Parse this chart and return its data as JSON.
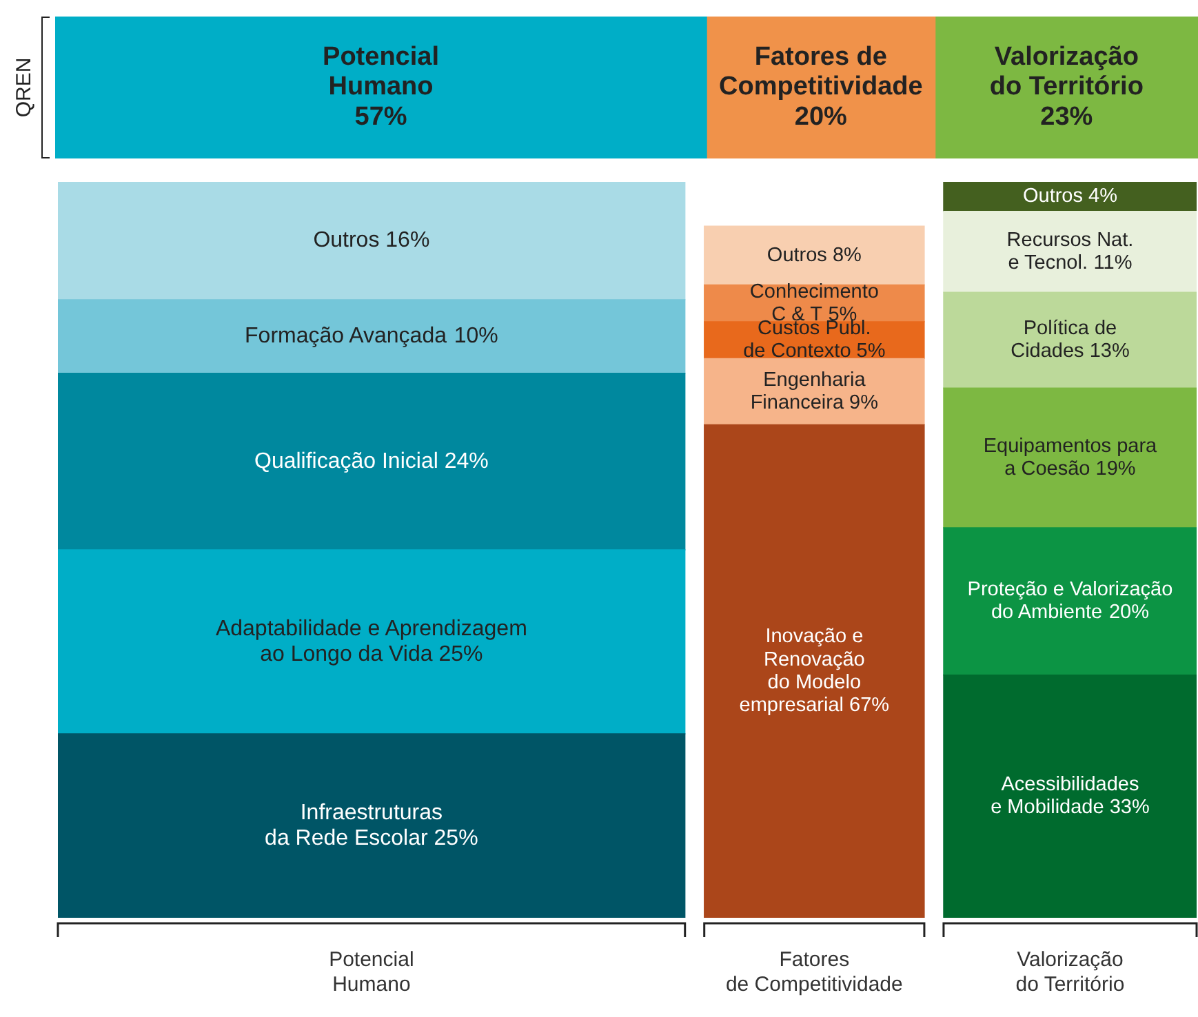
{
  "chart_data": [
    {
      "type": "bar",
      "orientation": "horizontal",
      "stacked": true,
      "categories": [
        "QREN"
      ],
      "legend": false,
      "series": [
        {
          "name": "Potencial\nHumano",
          "color": "#00aec7",
          "values": [
            57
          ],
          "value_labels": [
            "57%"
          ]
        },
        {
          "name": "Fatores de\nCompetitividade",
          "color": "#f0924a",
          "values": [
            20
          ],
          "value_labels": [
            "20%"
          ]
        },
        {
          "name": "Valorização\ndo Território",
          "color": "#7db842",
          "values": [
            23
          ],
          "value_labels": [
            "23%"
          ]
        }
      ]
    },
    {
      "type": "bar",
      "stacked": true,
      "categories": [
        "Potencial\nHumano",
        "Fatores\nde Competitividade",
        "Valorização\ndo Território"
      ],
      "legend": false,
      "series": [
        {
          "name": "Infraestruturas\nda Rede Escolar",
          "color": "#005566",
          "values": [
            25,
            null,
            null
          ],
          "value_labels": [
            "25%",
            null,
            null
          ]
        },
        {
          "name": "Adaptabilidade e Aprendizagem\nao Longo da Vida",
          "color": "#00aec7",
          "values": [
            25,
            null,
            null
          ],
          "value_labels": [
            "25%",
            null,
            null
          ]
        },
        {
          "name": "Qualificação Inicial",
          "color": "#00889e",
          "values": [
            24,
            null,
            null
          ],
          "value_labels": [
            "24%",
            null,
            null
          ]
        },
        {
          "name": "Formação Avançada",
          "color": "#74c6d9",
          "values": [
            10,
            null,
            null
          ],
          "value_labels": [
            "10%",
            null,
            null
          ]
        },
        {
          "name": "Outros",
          "color": "#a9dbe6",
          "values": [
            16,
            null,
            null
          ],
          "value_labels": [
            "16%",
            null,
            null
          ]
        },
        {
          "name": "Inovação e\nRenovação\ndo Modelo\nempresarial",
          "color": "#ab461a",
          "values": [
            null,
            67,
            null
          ],
          "value_labels": [
            null,
            "67%",
            null
          ]
        },
        {
          "name": "Engenharia\nFinanceira",
          "color": "#f6b48a",
          "values": [
            null,
            9,
            null
          ],
          "value_labels": [
            null,
            "9%",
            null
          ]
        },
        {
          "name": "Custos Publ.\nde Contexto",
          "color": "#e8691c",
          "values": [
            null,
            5,
            null
          ],
          "value_labels": [
            null,
            "5%",
            null
          ]
        },
        {
          "name": "Conhecimento\nC & T",
          "color": "#ee8a4a",
          "values": [
            null,
            5,
            null
          ],
          "value_labels": [
            null,
            "5%",
            null
          ]
        },
        {
          "name": "Outros",
          "color": "#f8cfb0",
          "values": [
            null,
            8,
            null
          ],
          "value_labels": [
            null,
            "8%",
            null
          ]
        },
        {
          "name": "Acessibilidades\ne Mobilidade",
          "color": "#006b2e",
          "values": [
            null,
            null,
            33
          ],
          "value_labels": [
            null,
            null,
            "33%"
          ]
        },
        {
          "name": "Proteção e Valorização\ndo Ambiente",
          "color": "#0c9444",
          "values": [
            null,
            null,
            20
          ],
          "value_labels": [
            null,
            null,
            "20%"
          ]
        },
        {
          "name": "Equipamentos para\na Coesão",
          "color": "#7db842",
          "values": [
            null,
            null,
            19
          ],
          "value_labels": [
            null,
            null,
            "19%"
          ]
        },
        {
          "name": "Política de\nCidades",
          "color": "#bcd99a",
          "values": [
            null,
            null,
            13
          ],
          "value_labels": [
            null,
            null,
            "13%"
          ]
        },
        {
          "name": "Recursos Nat.\ne Tecnol.",
          "color": "#e8f0dc",
          "values": [
            null,
            null,
            11
          ],
          "value_labels": [
            null,
            null,
            "11%"
          ]
        },
        {
          "name": "Outros",
          "color": "#44601f",
          "values": [
            null,
            null,
            4
          ],
          "value_labels": [
            null,
            null,
            "4%"
          ]
        }
      ]
    }
  ]
}
